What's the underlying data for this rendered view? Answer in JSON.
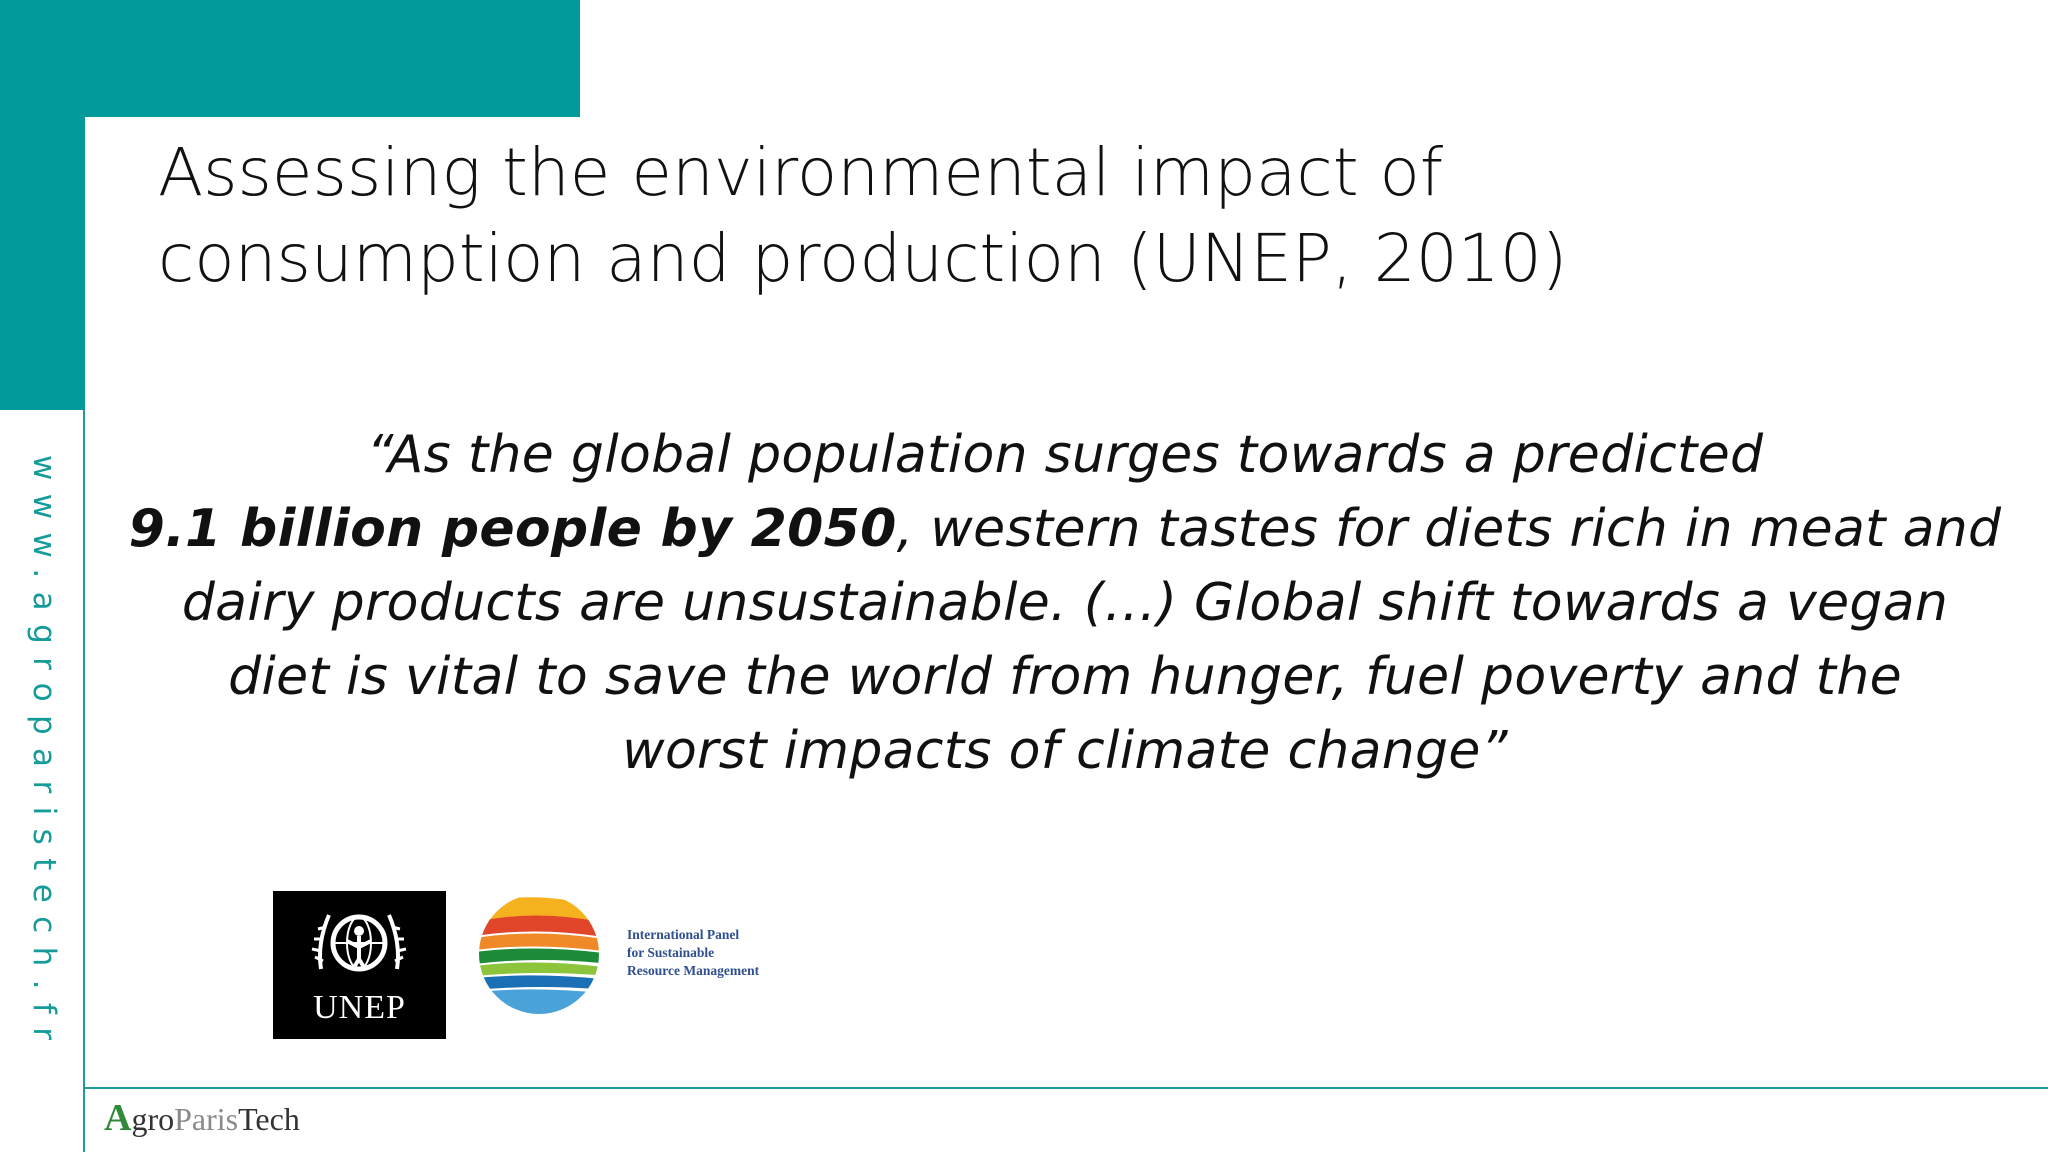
{
  "side_url": "www.agroparistech.fr",
  "title": {
    "line1": "Assessing the environmental impact of",
    "line2": "consumption and production (UNEP, 2010)"
  },
  "quote": {
    "line1": "“As the global population surges towards a predicted",
    "line2_bold": "9.1 billion people by 2050",
    "line2_rest": ", western tastes for diets rich in meat and",
    "line3": "dairy products are unsustainable. (…) Global shift towards a vegan",
    "line4": "diet is vital to save the world from hunger, fuel poverty and the",
    "line5": "worst impacts of climate change”"
  },
  "logos": {
    "unep": "UNEP",
    "irp_line1": "International Panel",
    "irp_line2": "for Sustainable",
    "irp_line3": "Resource Management",
    "agroparistech": {
      "a": "A",
      "gro": "gro",
      "paris": "Paris",
      "tech": "Tech"
    }
  },
  "colors": {
    "teal": "#039a9b",
    "text": "#111111"
  }
}
